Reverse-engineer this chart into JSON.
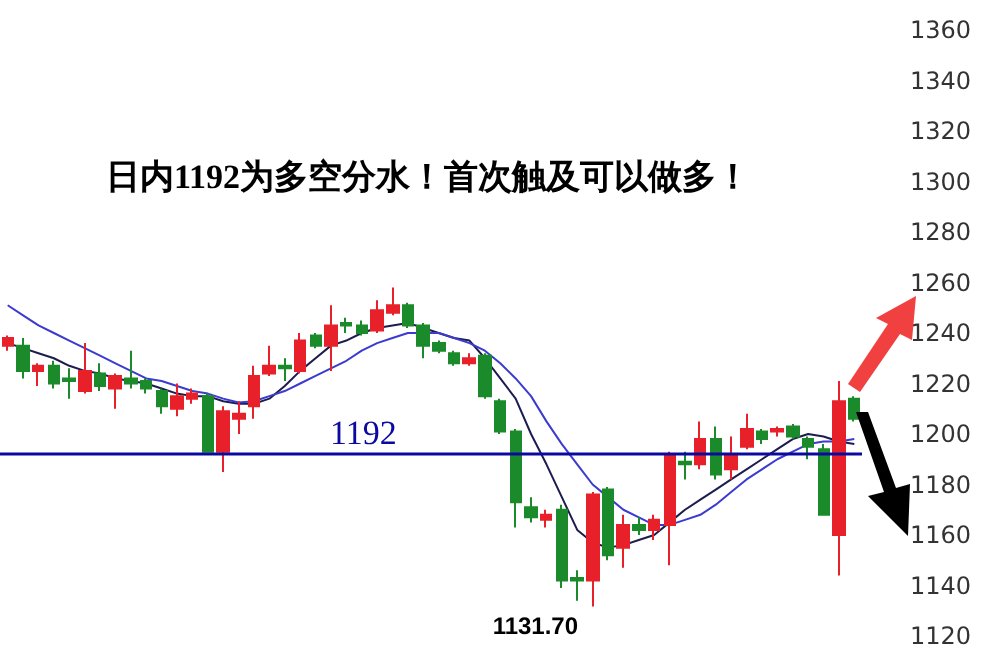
{
  "chart_data": {
    "type": "candlestick",
    "title": "日内1192为多空分水！首次触及可以做多！",
    "categories": [
      null,
      null,
      null,
      null,
      null,
      null,
      null,
      null,
      null,
      null,
      null,
      null,
      null,
      null,
      null,
      null,
      null,
      null,
      null,
      null,
      null,
      null,
      null,
      null,
      null,
      null,
      null,
      null,
      null,
      null,
      null,
      null,
      null,
      null,
      null,
      null,
      null,
      null,
      null,
      null,
      null,
      null,
      null,
      null,
      null,
      null,
      null,
      null,
      null,
      null,
      null,
      null,
      null,
      null,
      null,
      null
    ],
    "ohlc": [
      [
        1235,
        1239,
        1233,
        1238
      ],
      [
        1235,
        1238,
        1222,
        1225
      ],
      [
        1225,
        1228,
        1219,
        1227
      ],
      [
        1227,
        1229,
        1218,
        1220
      ],
      [
        1222,
        1226,
        1214,
        1221
      ],
      [
        1217,
        1236,
        1216,
        1225
      ],
      [
        1224,
        1228,
        1217,
        1219
      ],
      [
        1218,
        1224,
        1210,
        1223
      ],
      [
        1222,
        1233,
        1218,
        1220
      ],
      [
        1221,
        1222,
        1216,
        1218
      ],
      [
        1217,
        1218,
        1208,
        1211
      ],
      [
        1210,
        1220,
        1207,
        1215
      ],
      [
        1214,
        1218,
        1212,
        1216
      ],
      [
        1215,
        1216,
        1193,
        1193
      ],
      [
        1193,
        1211,
        1185,
        1209
      ],
      [
        1206,
        1213,
        1200,
        1208
      ],
      [
        1211,
        1227,
        1206,
        1223
      ],
      [
        1224,
        1235,
        1223,
        1227
      ],
      [
        1227,
        1230,
        1221,
        1226
      ],
      [
        1225,
        1240,
        1224,
        1237
      ],
      [
        1239,
        1240,
        1234,
        1235
      ],
      [
        1235,
        1251,
        1225,
        1243
      ],
      [
        1244,
        1246,
        1240,
        1243
      ],
      [
        1243,
        1245,
        1239,
        1240
      ],
      [
        1241,
        1253,
        1240,
        1249
      ],
      [
        1248,
        1258,
        1247,
        1251
      ],
      [
        1251,
        1252,
        1242,
        1243
      ],
      [
        1243,
        1244,
        1230,
        1235
      ],
      [
        1236,
        1237,
        1232,
        1233
      ],
      [
        1232,
        1233,
        1227,
        1228
      ],
      [
        1228,
        1232,
        1227,
        1230
      ],
      [
        1231,
        1232,
        1214,
        1215
      ],
      [
        1213,
        1214,
        1200,
        1201
      ],
      [
        1201,
        1202,
        1163,
        1173
      ],
      [
        1171,
        1175,
        1165,
        1167
      ],
      [
        1166,
        1170,
        1163,
        1168
      ],
      [
        1170,
        1172,
        1139,
        1142
      ],
      [
        1143,
        1146,
        1134,
        1142
      ],
      [
        1142,
        1177,
        1131.7,
        1176
      ],
      [
        1178,
        1179,
        1150,
        1152
      ],
      [
        1155,
        1168,
        1147,
        1164
      ],
      [
        1164,
        1167,
        1160,
        1162
      ],
      [
        1162,
        1168,
        1158,
        1166
      ],
      [
        1164,
        1193,
        1148,
        1192
      ],
      [
        1189,
        1193,
        1182,
        1188
      ],
      [
        1188,
        1205,
        1186,
        1198
      ],
      [
        1198,
        1203,
        1182,
        1184
      ],
      [
        1186,
        1199,
        1182,
        1192
      ],
      [
        1195,
        1208,
        1194,
        1202
      ],
      [
        1201,
        1202,
        1196,
        1198
      ],
      [
        1201,
        1203,
        1199,
        1202
      ],
      [
        1203,
        1204,
        1198,
        1199
      ],
      [
        1198,
        1199,
        1190,
        1195
      ],
      [
        1194,
        1196,
        1168,
        1168
      ],
      [
        1160,
        1221,
        1144,
        1213
      ],
      [
        1214,
        1215,
        1205,
        1206
      ]
    ],
    "colors": [
      "#e8202a",
      "#1a8a2a",
      "#e8202a",
      "#1a8a2a",
      "#1a8a2a",
      "#e8202a",
      "#1a8a2a",
      "#e8202a",
      "#1a8a2a",
      "#1a8a2a",
      "#1a8a2a",
      "#e8202a",
      "#e8202a",
      "#1a8a2a",
      "#e8202a",
      "#e8202a",
      "#e8202a",
      "#e8202a",
      "#1a8a2a",
      "#e8202a",
      "#1a8a2a",
      "#e8202a",
      "#1a8a2a",
      "#1a8a2a",
      "#e8202a",
      "#e8202a",
      "#1a8a2a",
      "#1a8a2a",
      "#1a8a2a",
      "#1a8a2a",
      "#e8202a",
      "#1a8a2a",
      "#1a8a2a",
      "#1a8a2a",
      "#1a8a2a",
      "#e8202a",
      "#1a8a2a",
      "#1a8a2a",
      "#e8202a",
      "#1a8a2a",
      "#e8202a",
      "#1a8a2a",
      "#e8202a",
      "#e8202a",
      "#1a8a2a",
      "#e8202a",
      "#1a8a2a",
      "#e8202a",
      "#e8202a",
      "#1a8a2a",
      "#e8202a",
      "#1a8a2a",
      "#1a8a2a",
      "#1a8a2a",
      "#e8202a",
      "#1a8a2a"
    ],
    "series": [
      {
        "type": "line",
        "color": "#1c1c50",
        "values": [
          1236,
          1234,
          1232,
          1230,
          1227,
          1225,
          1224,
          1222,
          1221,
          1220,
          1218,
          1216,
          1215,
          1215,
          1213,
          1212,
          1212,
          1214,
          1219,
          1225,
          1230,
          1235,
          1237,
          1240,
          1242,
          1243,
          1244,
          1242,
          1240,
          1238,
          1237,
          1230,
          1222,
          1214,
          1200,
          1188,
          1175,
          1162,
          1157,
          1155,
          1156,
          1158,
          1160,
          1165,
          1170,
          1174,
          1178,
          1182,
          1186,
          1190,
          1194,
          1198,
          1200,
          1199,
          1197,
          1196
        ]
      },
      {
        "type": "line",
        "color": "#3b3bd0",
        "values": [
          1251,
          1247,
          1243,
          1240,
          1237,
          1234,
          1231,
          1228,
          1225,
          1222,
          1221,
          1219,
          1217,
          1216,
          1214,
          1212.5,
          1213,
          1215,
          1217,
          1220,
          1223,
          1226,
          1229,
          1233,
          1236,
          1238,
          1240,
          1240,
          1240,
          1238,
          1236,
          1233,
          1228,
          1222,
          1215,
          1205,
          1196,
          1188,
          1180,
          1175,
          1170,
          1167,
          1164,
          1164,
          1166,
          1168,
          1172,
          1177,
          1182,
          1186,
          1190,
          1193,
          1196,
          1197,
          1197,
          1198
        ]
      }
    ],
    "ref_lines": [
      {
        "axis": "y",
        "value": 1192,
        "label": "1192",
        "color": "#0a0aa0"
      }
    ],
    "annotations": [
      "1131.70"
    ],
    "ylim": [
      1120,
      1360
    ],
    "yticks": [
      1120,
      1140,
      1160,
      1180,
      1200,
      1220,
      1240,
      1260,
      1280,
      1300,
      1320,
      1340,
      1360
    ],
    "grid": false,
    "tick_labels": "y"
  }
}
